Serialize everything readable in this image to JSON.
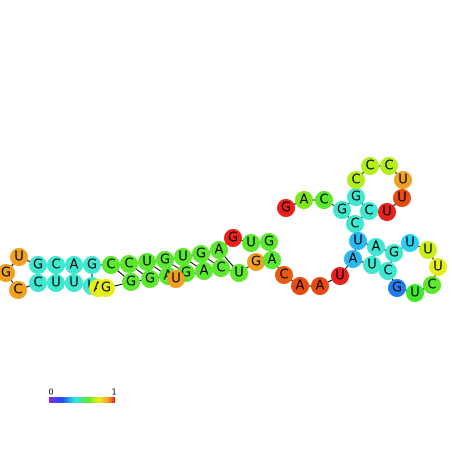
{
  "nodes": [
    {
      "label": "G",
      "color": "#e8201c"
    },
    {
      "label": "A",
      "color": "#7ee81c"
    },
    {
      "label": "C",
      "color": "#5ce82c"
    },
    {
      "label": "G",
      "color": "#3ee8d0"
    },
    {
      "label": "G",
      "color": "#3ee8d0"
    },
    {
      "label": "C",
      "color": "#b4ee1c"
    },
    {
      "label": "C",
      "color": "#b4ee1c"
    },
    {
      "label": "C",
      "color": "#b4ee1c"
    },
    {
      "label": "U",
      "color": "#f0a020"
    },
    {
      "label": "U",
      "color": "#e84a10"
    },
    {
      "label": "U",
      "color": "#e8201c"
    },
    {
      "label": "C",
      "color": "#3ee8d0"
    },
    {
      "label": "C",
      "color": "#3ee8d0"
    },
    {
      "label": "U",
      "color": "#2ab8f0"
    },
    {
      "label": "A",
      "color": "#3ee8d0"
    },
    {
      "label": "G",
      "color": "#3ee8d0"
    },
    {
      "label": "U",
      "color": "#2ad0f0"
    },
    {
      "label": "U",
      "color": "#ccee18"
    },
    {
      "label": "U",
      "color": "#e4ee18"
    },
    {
      "label": "C",
      "color": "#5ce82c"
    },
    {
      "label": "U",
      "color": "#3ee82c"
    },
    {
      "label": "G",
      "color": "#1e7ef0"
    },
    {
      "label": "C",
      "color": "#3ee8d0"
    },
    {
      "label": "U",
      "color": "#3ee8d0"
    },
    {
      "label": "A",
      "color": "#2ab8f0"
    },
    {
      "label": "U",
      "color": "#e8201c"
    },
    {
      "label": "A",
      "color": "#e84a10"
    },
    {
      "label": "A",
      "color": "#e84a10"
    },
    {
      "label": "C",
      "color": "#e85a10"
    },
    {
      "label": "G",
      "color": "#5ce82c"
    },
    {
      "label": "G",
      "color": "#5ce82c"
    },
    {
      "label": "U",
      "color": "#5ce82c"
    },
    {
      "label": "G",
      "color": "#e8201c"
    },
    {
      "label": "A",
      "color": "#5ce82c"
    },
    {
      "label": "G",
      "color": "#5ce82c"
    },
    {
      "label": "U",
      "color": "#5ce82c"
    },
    {
      "label": "G",
      "color": "#5ce82c"
    },
    {
      "label": "U",
      "color": "#5ce82c"
    },
    {
      "label": "C",
      "color": "#5ce82c"
    },
    {
      "label": "C",
      "color": "#5ce82c"
    },
    {
      "label": "G",
      "color": "#3ee8d0"
    },
    {
      "label": "A",
      "color": "#3ee8d0"
    },
    {
      "label": "C",
      "color": "#3ee8d0"
    },
    {
      "label": "G",
      "color": "#3ee8d0"
    },
    {
      "label": "U",
      "color": "#f0a020"
    },
    {
      "label": "G",
      "color": "#f0a020"
    },
    {
      "label": "C",
      "color": "#f0a020"
    },
    {
      "label": "C",
      "color": "#3ee8d0"
    },
    {
      "label": "U",
      "color": "#3ee8d0"
    },
    {
      "label": "U",
      "color": "#3ee8d0"
    },
    {
      "label": "U",
      "color": "#3ee8d0"
    },
    {
      "label": "A",
      "color": "#e4ee18"
    },
    {
      "label": "G",
      "color": "#e4ee18"
    },
    {
      "label": "G",
      "color": "#5ce82c"
    },
    {
      "label": "G",
      "color": "#5ce82c"
    },
    {
      "label": "A",
      "color": "#5ce82c"
    },
    {
      "label": "G",
      "color": "#5ce82c"
    },
    {
      "label": "U",
      "color": "#f0a020"
    },
    {
      "label": "A",
      "color": "#5ce82c"
    },
    {
      "label": "C",
      "color": "#5ce82c"
    },
    {
      "label": "U",
      "color": "#5ce82c"
    },
    {
      "label": "G",
      "color": "#f0a020"
    },
    {
      "label": "A",
      "color": "#5ce82c"
    }
  ],
  "colorbar": {
    "min_label": "0",
    "max_label": "1"
  }
}
